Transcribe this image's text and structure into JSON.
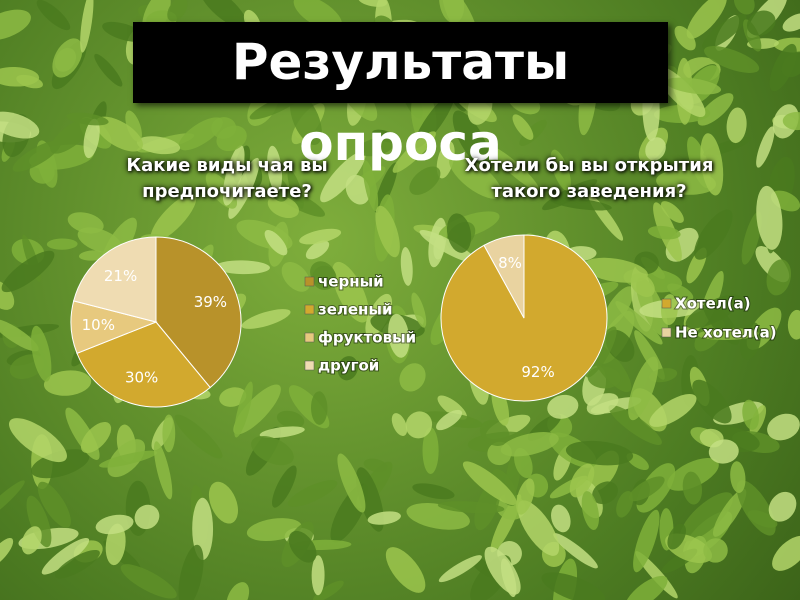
{
  "title": "Результаты опроса",
  "chart_data": [
    {
      "type": "pie",
      "title": "Какие виды чая вы предпочитаете?",
      "categories": [
        "черный",
        "зеленый",
        "фруктовый",
        "другой"
      ],
      "values": [
        39,
        30,
        10,
        21
      ],
      "value_labels": [
        "39%",
        "30%",
        "10%",
        "21%"
      ],
      "colors": [
        "#b8922a",
        "#d2a92e",
        "#e7c97e",
        "#efdcb2"
      ],
      "legend": "right"
    },
    {
      "type": "pie",
      "title": "Хотели бы вы открытия такого заведения?",
      "categories": [
        "Хотел(а)",
        "Не хотел(а)"
      ],
      "values": [
        92,
        8
      ],
      "value_labels": [
        "92%",
        "8%"
      ],
      "colors": [
        "#d2a92e",
        "#e9d3a0"
      ],
      "legend": "right"
    }
  ]
}
